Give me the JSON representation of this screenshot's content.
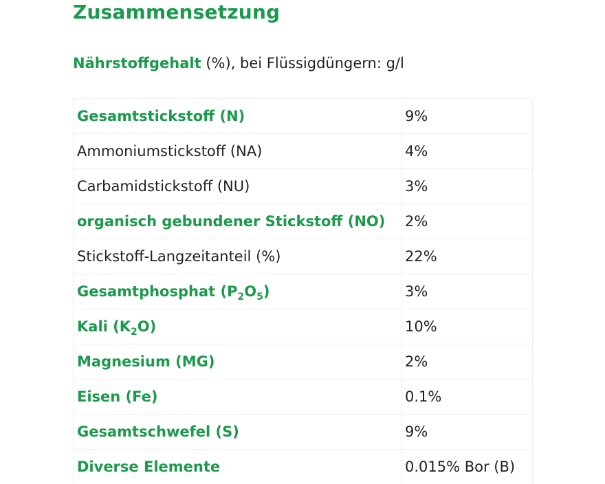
{
  "heading": "Zusammensetzung",
  "intro": {
    "label": "Nährstoffgehalt",
    "rest": " (%), bei Flüssigdüngern: g/l"
  },
  "colors": {
    "accent_green": "#1a9a4b",
    "text": "#222222",
    "border": "#efefef"
  },
  "rows": [
    {
      "name": "Gesamtstickstoff (N)",
      "value": "9%",
      "bold": true
    },
    {
      "name": "Ammoniumstickstoff (NA)",
      "value": "4%",
      "bold": false
    },
    {
      "name": "Carbamidstickstoff (NU)",
      "value": "3%",
      "bold": false
    },
    {
      "name": "organisch gebundener Stickstoff (NO)",
      "value": "2%",
      "bold": true
    },
    {
      "name": "Stickstoff-Langzeitanteil (%)",
      "value": "22%",
      "bold": false
    },
    {
      "name_pre": "Gesamtphosphat (P",
      "name_sub1": "2",
      "name_mid": "O",
      "name_sub2": "5",
      "name_post": ")",
      "value": "3%",
      "bold": true
    },
    {
      "name_pre": "Kali (K",
      "name_sub1": "2",
      "name_mid": "O)",
      "value": "10%",
      "bold": true
    },
    {
      "name": "Magnesium (MG)",
      "value": "2%",
      "bold": true
    },
    {
      "name": "Eisen (Fe)",
      "value": "0.1%",
      "bold": true
    },
    {
      "name": "Gesamtschwefel (S)",
      "value": "9%",
      "bold": true
    },
    {
      "name": "Diverse Elemente",
      "value": "0.015% Bor (B)",
      "bold": true
    }
  ]
}
